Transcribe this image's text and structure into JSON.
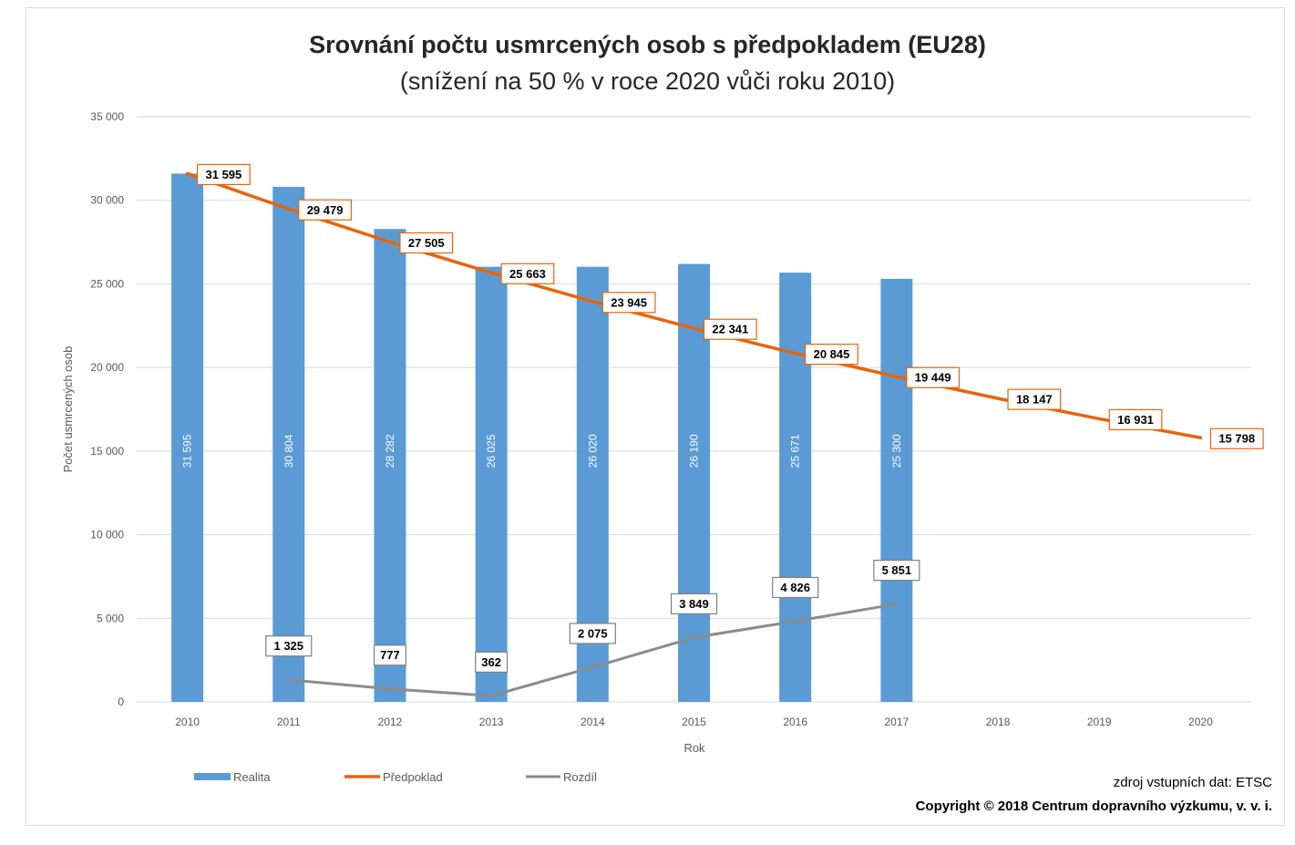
{
  "chart_data": {
    "type": "bar",
    "title": "Srovnání počtu usmrcených osob s předpokladem (EU28)",
    "subtitle": "(snížení na 50 % v roce 2020 vůči roku 2010)",
    "xlabel": "Rok",
    "ylabel": "Počet usmrcených osob",
    "ylim": [
      0,
      35000
    ],
    "yticks": [
      "0",
      "5 000",
      "10 000",
      "15 000",
      "20 000",
      "25 000",
      "30 000",
      "35 000"
    ],
    "ytick_values": [
      0,
      5000,
      10000,
      15000,
      20000,
      25000,
      30000,
      35000
    ],
    "categories": [
      "2010",
      "2011",
      "2012",
      "2013",
      "2014",
      "2015",
      "2016",
      "2017",
      "2018",
      "2019",
      "2020"
    ],
    "grid": true,
    "legend_position": "bottom-left",
    "series": [
      {
        "name": "Realita",
        "type": "bar",
        "color": "#5b9bd5",
        "values": [
          31595,
          30804,
          28282,
          26025,
          26020,
          26190,
          25671,
          25300,
          null,
          null,
          null
        ],
        "labels": [
          "31 595",
          "30 804",
          "28 282",
          "26 025",
          "26 020",
          "26 190",
          "25 671",
          "25 300",
          null,
          null,
          null
        ]
      },
      {
        "name": "Předpoklad",
        "type": "line",
        "color": "#e8640c",
        "values": [
          31595,
          29479,
          27505,
          25663,
          23945,
          22341,
          20845,
          19449,
          18147,
          16931,
          15798
        ],
        "labels": [
          "31 595",
          "29 479",
          "27 505",
          "25 663",
          "23 945",
          "22 341",
          "20 845",
          "19 449",
          "18 147",
          "16 931",
          "15 798"
        ]
      },
      {
        "name": "Rozdíl",
        "type": "line",
        "color": "#8c8c8c",
        "values": [
          null,
          1325,
          777,
          362,
          2075,
          3849,
          4826,
          5851,
          null,
          null,
          null
        ],
        "labels": [
          null,
          "1 325",
          "777",
          "362",
          "2 075",
          "3 849",
          "4 826",
          "5 851",
          null,
          null,
          null
        ]
      }
    ]
  },
  "footer": {
    "source": "zdroj vstupních dat: ETSC",
    "copyright": "Copyright © 2018  Centrum dopravního výzkumu, v. v. i."
  }
}
